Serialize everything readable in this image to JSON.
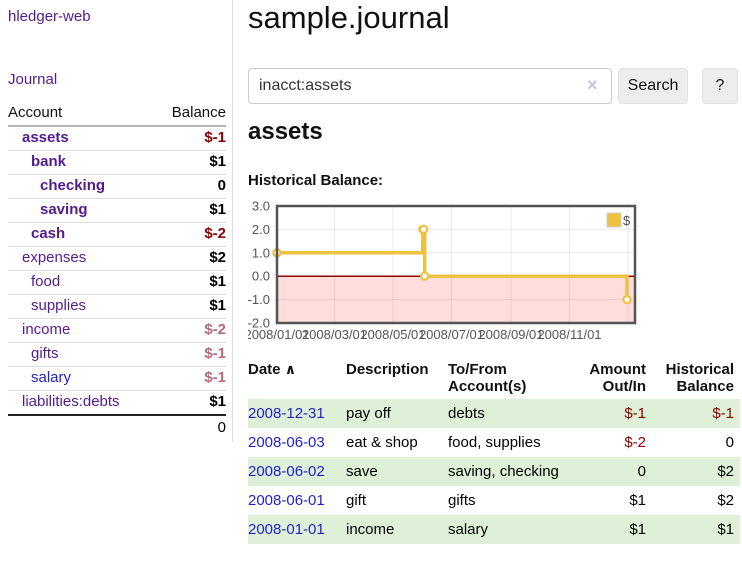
{
  "app": {
    "title": "hledger-web"
  },
  "sidebar": {
    "journal_link": "Journal",
    "table": {
      "headers": {
        "account": "Account",
        "balance": "Balance"
      },
      "rows": [
        {
          "account": "assets",
          "balance": "$-1",
          "indent": 0,
          "acct_class": "matched",
          "bal_class": "neg"
        },
        {
          "account": "bank",
          "balance": "$1",
          "indent": 1,
          "acct_class": "matched",
          "bal_class": ""
        },
        {
          "account": "checking",
          "balance": "0",
          "indent": 2,
          "acct_class": "matched",
          "bal_class": ""
        },
        {
          "account": "saving",
          "balance": "$1",
          "indent": 2,
          "acct_class": "matched",
          "bal_class": ""
        },
        {
          "account": "cash",
          "balance": "$-2",
          "indent": 1,
          "acct_class": "matched",
          "bal_class": "neg"
        },
        {
          "account": "expenses",
          "balance": "$2",
          "indent": 0,
          "acct_class": "plain",
          "bal_class": ""
        },
        {
          "account": "food",
          "balance": "$1",
          "indent": 1,
          "acct_class": "plain",
          "bal_class": ""
        },
        {
          "account": "supplies",
          "balance": "$1",
          "indent": 1,
          "acct_class": "plain",
          "bal_class": ""
        },
        {
          "account": "income",
          "balance": "$-2",
          "indent": 0,
          "acct_class": "plain",
          "bal_class": "neg-dim"
        },
        {
          "account": "gifts",
          "balance": "$-1",
          "indent": 1,
          "acct_class": "plain",
          "bal_class": "neg-dim"
        },
        {
          "account": "salary",
          "balance": "$-1",
          "indent": 1,
          "acct_class": "blue",
          "bal_class": "neg-dim"
        },
        {
          "account": "liabilities:debts",
          "balance": "$1",
          "indent": 0,
          "acct_class": "plain",
          "bal_class": ""
        }
      ],
      "total": "0"
    }
  },
  "main": {
    "title": "sample.journal",
    "search": {
      "value": "inacct:assets",
      "clear_icon": "×",
      "button": "Search",
      "help_button": "?"
    },
    "account_heading": "assets",
    "chart_label": "Historical Balance:"
  },
  "chart_data": {
    "type": "line",
    "title": "Historical Balance",
    "step": true,
    "series": [
      {
        "name": "$",
        "color": "#EDC240",
        "points": [
          [
            "2008-01-01",
            1
          ],
          [
            "2008-06-01",
            2
          ],
          [
            "2008-06-02",
            2
          ],
          [
            "2008-06-03",
            0
          ],
          [
            "2008-12-31",
            -1
          ]
        ]
      }
    ],
    "ylim": [
      -2,
      3
    ],
    "yticks": [
      "3.0",
      "2.0",
      "1.0",
      "0.0",
      "-1.0",
      "-2.0"
    ],
    "xticks": [
      "2008/01/01",
      "2008/03/01",
      "2008/05/01",
      "2008/07/01",
      "2008/09/01",
      "2008/11/01"
    ],
    "xdomain": [
      "2008-01-01",
      "2009-01-01"
    ],
    "legend": "$",
    "colors": {
      "line": "#EDC240",
      "marker_fill": "#ffffff",
      "negative_fill": "#ffdddd",
      "zero_line": "#8b0000",
      "grid": "#00000014",
      "border": "#545454"
    }
  },
  "register": {
    "headers": {
      "date": "Date",
      "sort_icon": "∧",
      "description": "Description",
      "accounts": "To/From Account(s)",
      "amount": "Amount Out/In",
      "balance": "Historical Balance"
    },
    "rows": [
      {
        "date": "2008-12-31",
        "description": "pay off",
        "accounts": "debts",
        "amount": "$-1",
        "amount_neg": true,
        "balance": "$-1",
        "balance_neg": true
      },
      {
        "date": "2008-06-03",
        "description": "eat & shop",
        "accounts": "food, supplies",
        "amount": "$-2",
        "amount_neg": true,
        "balance": "0",
        "balance_neg": false
      },
      {
        "date": "2008-06-02",
        "description": "save",
        "accounts": "saving, checking",
        "amount": "0",
        "amount_neg": false,
        "balance": "$2",
        "balance_neg": false
      },
      {
        "date": "2008-06-01",
        "description": "gift",
        "accounts": "gifts",
        "amount": "$1",
        "amount_neg": false,
        "balance": "$2",
        "balance_neg": false
      },
      {
        "date": "2008-01-01",
        "description": "income",
        "accounts": "salary",
        "amount": "$1",
        "amount_neg": false,
        "balance": "$1",
        "balance_neg": false
      }
    ]
  }
}
